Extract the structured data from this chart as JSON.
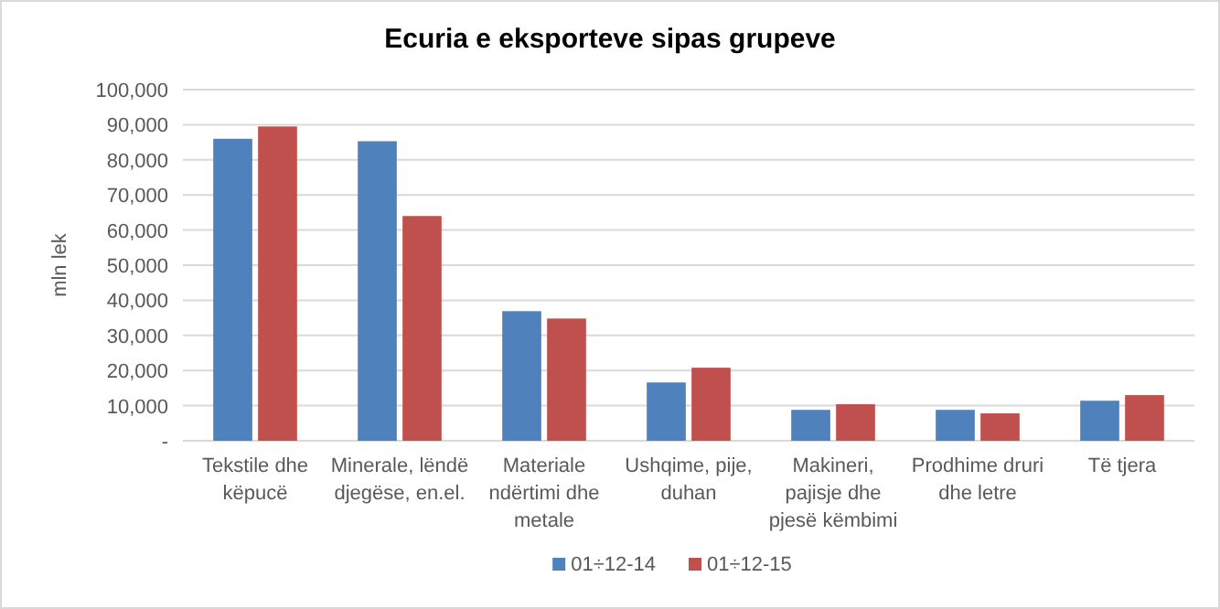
{
  "chart_data": {
    "type": "bar",
    "title": "Ecuria e eksporteve sipas grupeve",
    "ylabel": "mln lek",
    "categories": [
      "Tekstile dhe këpucë",
      "Minerale, lëndë djegëse, en.el.",
      "Materiale ndërtimi dhe metale",
      "Ushqime, pije, duhan",
      "Makineri, pajisje dhe pjesë këmbimi",
      "Prodhime druri dhe letre",
      "Të tjera"
    ],
    "series": [
      {
        "name": "01÷12-14",
        "color": "#4f81bd",
        "values": [
          86000,
          85300,
          36900,
          16600,
          8800,
          8800,
          11400
        ]
      },
      {
        "name": "01÷12-15",
        "color": "#c0504d",
        "values": [
          89500,
          64000,
          34800,
          20800,
          10400,
          7800,
          13000
        ]
      }
    ],
    "ylim": [
      0,
      100000
    ],
    "yticks": [
      {
        "value": 0,
        "label": "-"
      },
      {
        "value": 10000,
        "label": "10,000"
      },
      {
        "value": 20000,
        "label": "20,000"
      },
      {
        "value": 30000,
        "label": "30,000"
      },
      {
        "value": 40000,
        "label": "40,000"
      },
      {
        "value": 50000,
        "label": "50,000"
      },
      {
        "value": 60000,
        "label": "60,000"
      },
      {
        "value": 70000,
        "label": "70,000"
      },
      {
        "value": 80000,
        "label": "80,000"
      },
      {
        "value": 90000,
        "label": "90,000"
      },
      {
        "value": 100000,
        "label": "100,000"
      }
    ],
    "grid": "y",
    "legend": "bottom"
  }
}
